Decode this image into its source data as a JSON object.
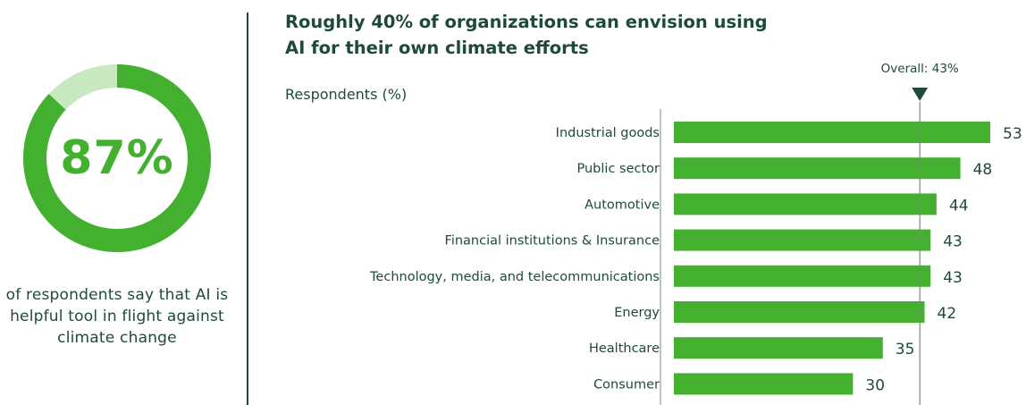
{
  "colors": {
    "accent": "#44b02f",
    "accent_light": "#c8e8bf",
    "dark": "#1e4a3a"
  },
  "stat": {
    "value": "87%",
    "percent": 87,
    "caption": "of respondents say that AI is helpful tool in flight against climate change"
  },
  "chart_data": {
    "type": "bar",
    "orientation": "horizontal",
    "title": "Roughly 40% of organizations can envision using AI for their own climate efforts",
    "ylabel": "Respondents (%)",
    "categories": [
      "Industrial goods",
      "Public sector",
      "Automotive",
      "Financial institutions & Insurance",
      "Technology, media, and telecommunications",
      "Energy",
      "Healthcare",
      "Consumer"
    ],
    "values": [
      53,
      48,
      44,
      43,
      43,
      42,
      35,
      30
    ],
    "reference_line": {
      "label": "Overall: 43%",
      "value": 43
    },
    "xlim": [
      0,
      53
    ],
    "grid": false,
    "legend": "none"
  }
}
